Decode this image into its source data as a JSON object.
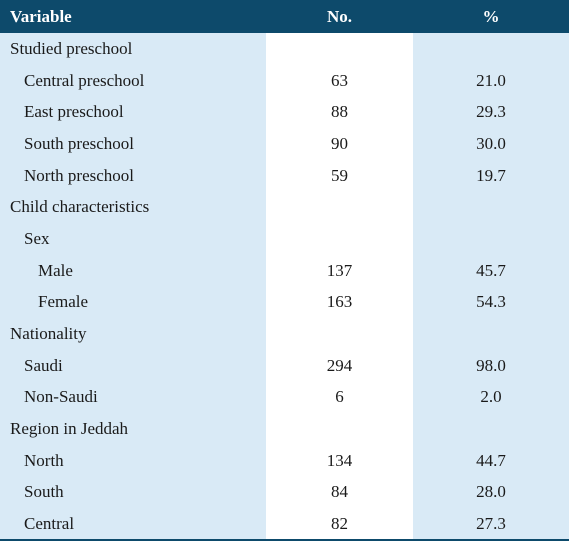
{
  "table": {
    "headers": {
      "variable": "Variable",
      "no": "No.",
      "pct": "%"
    },
    "rows": [
      {
        "label": "Studied preschool",
        "level": 0,
        "no": "",
        "pct": ""
      },
      {
        "label": "Central preschool",
        "level": 1,
        "no": "63",
        "pct": "21.0"
      },
      {
        "label": "East preschool",
        "level": 1,
        "no": "88",
        "pct": "29.3"
      },
      {
        "label": "South preschool",
        "level": 1,
        "no": "90",
        "pct": "30.0"
      },
      {
        "label": "North preschool",
        "level": 1,
        "no": "59",
        "pct": "19.7"
      },
      {
        "label": "Child characteristics",
        "level": 0,
        "no": "",
        "pct": ""
      },
      {
        "label": "Sex",
        "level": 1,
        "no": "",
        "pct": ""
      },
      {
        "label": "Male",
        "level": 2,
        "no": "137",
        "pct": "45.7"
      },
      {
        "label": "Female",
        "level": 2,
        "no": "163",
        "pct": "54.3"
      },
      {
        "label": "Nationality",
        "level": 0,
        "no": "",
        "pct": ""
      },
      {
        "label": "Saudi",
        "level": 1,
        "no": "294",
        "pct": "98.0"
      },
      {
        "label": "Non-Saudi",
        "level": 1,
        "no": "6",
        "pct": "2.0"
      },
      {
        "label": "Region in Jeddah",
        "level": 0,
        "no": "",
        "pct": ""
      },
      {
        "label": "North",
        "level": 1,
        "no": "134",
        "pct": "44.7"
      },
      {
        "label": "South",
        "level": 1,
        "no": "84",
        "pct": "28.0"
      },
      {
        "label": "Central",
        "level": 1,
        "no": "82",
        "pct": "27.3"
      }
    ]
  },
  "colors": {
    "header_bg": "#0d4a6b",
    "header_text": "#ffffff",
    "band_bg": "#d9eaf6",
    "middle_bg": "#ffffff"
  }
}
